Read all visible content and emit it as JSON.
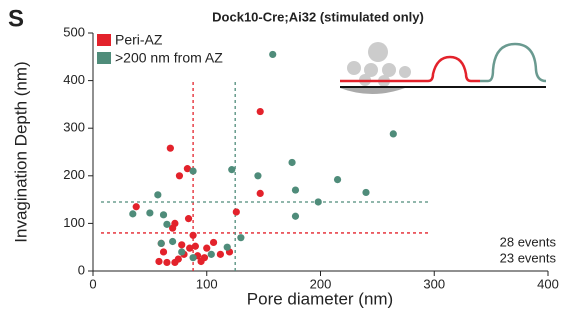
{
  "chart_data": {
    "type": "scatter",
    "panel_label": "S",
    "title": "Dock10-Cre;Ai32 (stimulated only)",
    "x_label": "Pore diameter (nm)",
    "y_label": "Invagination Depth (nm)",
    "xlim": [
      0,
      400
    ],
    "xticks": [
      0,
      100,
      200,
      300,
      400
    ],
    "ylim": [
      0,
      500
    ],
    "yticks": [
      0,
      100,
      200,
      300,
      400,
      500
    ],
    "series": [
      {
        "name": "Peri-AZ",
        "color": "#e3222b",
        "annotation": "28 events",
        "x": [
          38,
          68,
          76,
          83,
          147,
          147,
          126,
          70,
          72,
          84,
          88,
          90,
          60,
          62,
          58,
          65,
          72,
          75,
          80,
          85,
          92,
          98,
          100,
          106,
          112,
          120,
          95,
          78
        ],
        "values": [
          135,
          258,
          200,
          215,
          335,
          163,
          124,
          90,
          100,
          110,
          75,
          52,
          58,
          40,
          20,
          18,
          18,
          25,
          35,
          48,
          32,
          28,
          48,
          60,
          35,
          40,
          20,
          55
        ]
      },
      {
        "name": ">200 nm from AZ",
        "color": "#4f8c7a",
        "annotation": "23 events",
        "x": [
          158,
          264,
          145,
          175,
          178,
          215,
          240,
          198,
          178,
          122,
          88,
          57,
          35,
          50,
          62,
          65,
          60,
          70,
          78,
          88,
          104,
          118,
          130
        ],
        "values": [
          455,
          288,
          200,
          228,
          170,
          192,
          165,
          145,
          115,
          213,
          210,
          160,
          120,
          122,
          118,
          98,
          58,
          62,
          40,
          28,
          35,
          50,
          70
        ]
      }
    ],
    "reference_lines": [
      {
        "axis": "x",
        "value": 88,
        "color": "#e3222b"
      },
      {
        "axis": "y",
        "value": 80,
        "color": "#e3222b"
      },
      {
        "axis": "x",
        "value": 125,
        "color": "#4f8c7a"
      },
      {
        "axis": "y",
        "value": 145,
        "color": "#4f8c7a"
      }
    ]
  }
}
